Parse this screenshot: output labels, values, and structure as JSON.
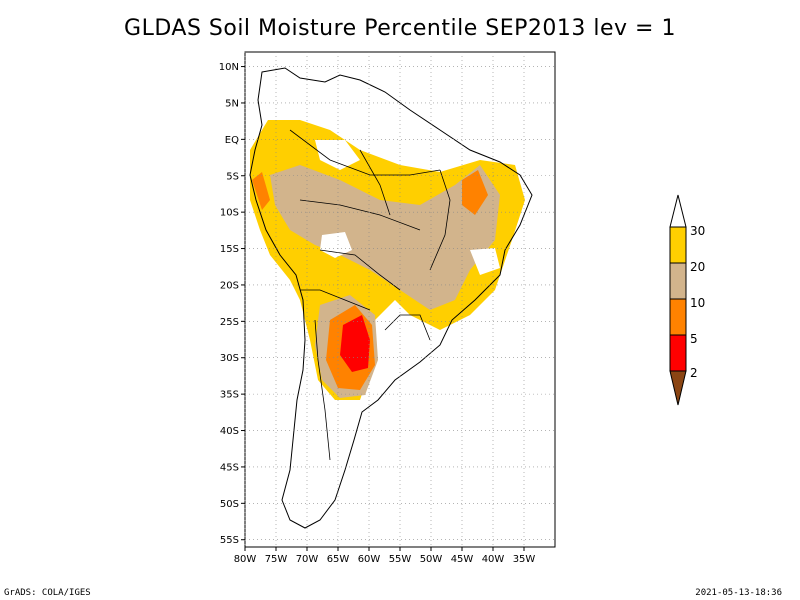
{
  "title": "GLDAS Soil Moisture Percentile SEP2013 lev = 1",
  "footer": {
    "left": "GrADS: COLA/IGES",
    "right": "2021-05-13-18:36"
  },
  "map": {
    "lon_range": [
      -80,
      -30
    ],
    "lat_range": [
      -56,
      12
    ],
    "lon_ticks": [
      "80W",
      "75W",
      "70W",
      "65W",
      "60W",
      "55W",
      "50W",
      "45W",
      "40W",
      "35W"
    ],
    "lat_ticks": [
      "10N",
      "5N",
      "EQ",
      "5S",
      "10S",
      "15S",
      "20S",
      "25S",
      "30S",
      "35S",
      "40S",
      "45S",
      "50S",
      "55S"
    ],
    "grid": "dotted"
  },
  "colorbar": {
    "labels": [
      "30",
      "20",
      "10",
      "5",
      "2"
    ],
    "colors": {
      "above_30": "#ffffff",
      "20_30": "#ffcf00",
      "10_20": "#d2b48c",
      "5_10": "#ff8200",
      "2_5": "#ff0000",
      "below_2": "#8b4513"
    }
  }
}
